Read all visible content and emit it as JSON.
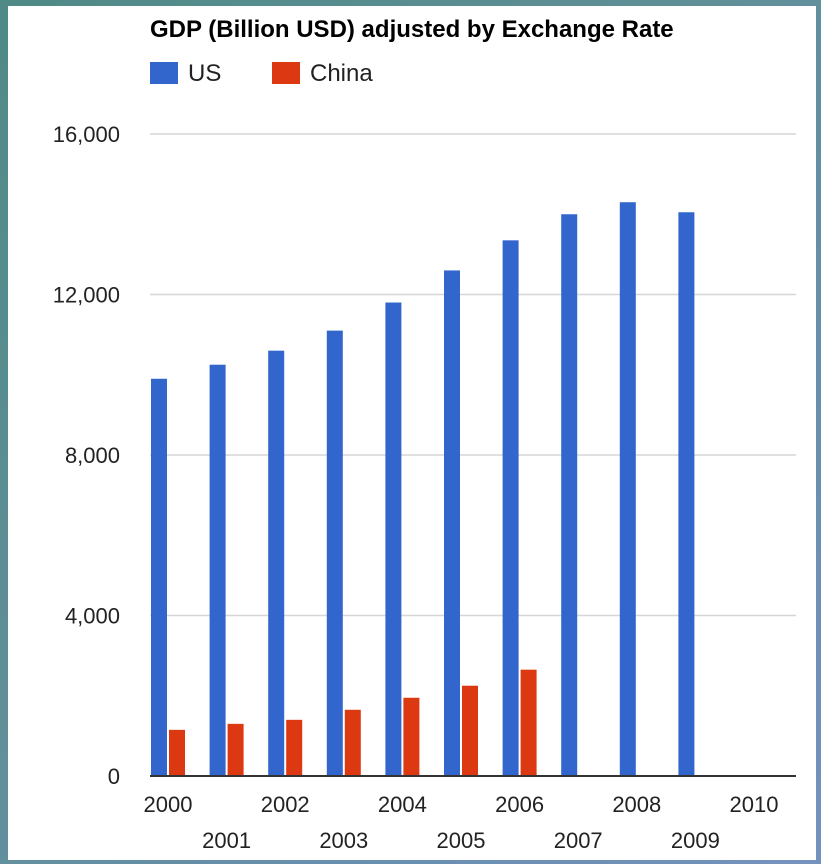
{
  "chart_data": {
    "type": "bar",
    "title": "GDP (Billion USD) adjusted by Exchange Rate",
    "xlabel": "",
    "ylabel": "",
    "categories": [
      "2000",
      "2001",
      "2002",
      "2003",
      "2004",
      "2005",
      "2006",
      "2007",
      "2008",
      "2009",
      "2010"
    ],
    "series": [
      {
        "name": "US",
        "color": "#3366cc",
        "values": [
          9900,
          10250,
          10600,
          11100,
          11800,
          12600,
          13350,
          14000,
          14300,
          14050,
          null
        ]
      },
      {
        "name": "China",
        "color": "#dc3912",
        "values": [
          1150,
          1300,
          1400,
          1650,
          1950,
          2250,
          2650,
          null,
          null,
          null,
          null
        ]
      }
    ],
    "yticks": [
      "0",
      "4,000",
      "8,000",
      "12,000",
      "16,000"
    ],
    "ylim": [
      0,
      16000
    ],
    "grid": true,
    "legend": "top-left"
  }
}
